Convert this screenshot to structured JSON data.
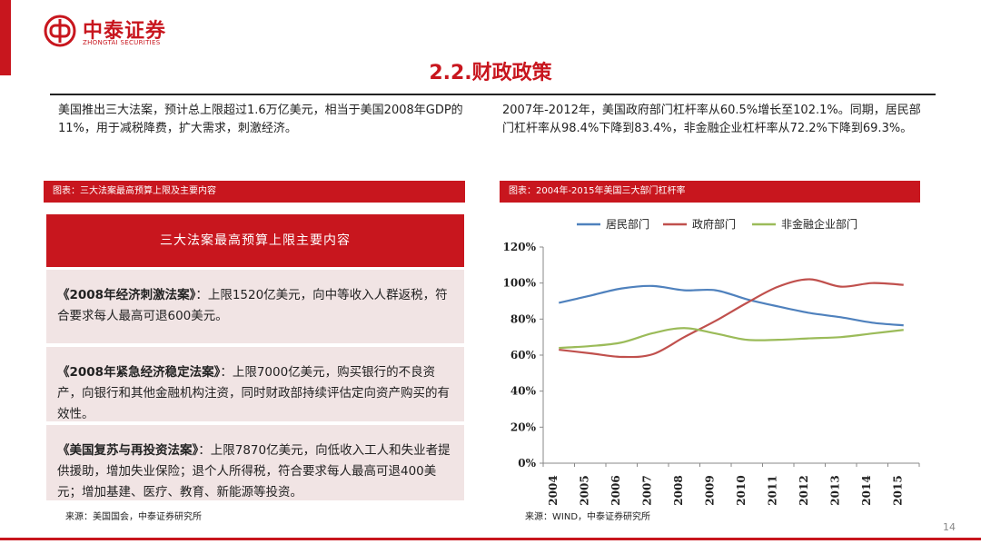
{
  "brand": {
    "name_cn": "中泰证券",
    "name_en": "ZHONGTAI SECURITIES",
    "color": "#c8161e"
  },
  "page": {
    "title": "2.2.财政政策",
    "number": "14"
  },
  "left": {
    "paragraph": "美国推出三大法案，预计总上限超过1.6万亿美元，相当于美国2008年GDP的11%，用于减税降费，扩大需求，刺激经济。",
    "figure_caption": "图表：三大法案最高预算上限及主要内容",
    "table_header": "三大法案最高预算上限主要内容",
    "rows": [
      {
        "title": "《2008年经济刺激法案》",
        "body": "：上限1520亿美元，向中等收入人群返税，符合要求每人最高可退600美元。"
      },
      {
        "title": "《2008年紧急经济稳定法案》",
        "body": "：上限7000亿美元，购买银行的不良资产，向银行和其他金融机构注资，同时财政部持续评估定向资产购买的有效性。"
      },
      {
        "title": "《美国复苏与再投资法案》",
        "body": "：上限7870亿美元，向低收入工人和失业者提供援助，增加失业保险；退个人所得税，符合要求每人最高可退400美元；增加基建、医疗、教育、新能源等投资。"
      }
    ],
    "source": "来源：美国国会，中泰证券研究所"
  },
  "right": {
    "paragraph": "2007年-2012年，美国政府部门杠杆率从60.5%增长至102.1%。同期，居民部门杠杆率从98.4%下降到83.4%，非金融企业杠杆率从72.2%下降到69.3%。",
    "figure_caption": "图表：2004年-2015年美国三大部门杠杆率",
    "source": "来源：WIND，中泰证券研究所"
  },
  "chart_data": {
    "type": "line",
    "title": "2004年-2015年美国三大部门杠杆率",
    "legend_position": "top",
    "x": [
      "2004",
      "2005",
      "2006",
      "2007",
      "2008",
      "2009",
      "2010",
      "2011",
      "2012",
      "2013",
      "2014",
      "2015"
    ],
    "ylim": [
      0,
      120
    ],
    "yticks": [
      0,
      20,
      40,
      60,
      80,
      100,
      120
    ],
    "ytick_labels": [
      "0%",
      "20%",
      "40%",
      "60%",
      "80%",
      "100%",
      "120%"
    ],
    "series": [
      {
        "name": "居民部门",
        "color": "#4f81bd",
        "values": [
          89,
          93,
          97,
          98.4,
          96,
          96,
          91,
          87,
          83.4,
          81,
          78,
          76.5
        ]
      },
      {
        "name": "政府部门",
        "color": "#c0504d",
        "values": [
          63,
          61,
          59,
          60.5,
          70,
          79,
          89,
          98,
          102.1,
          98,
          100,
          99
        ]
      },
      {
        "name": "非金融企业部门",
        "color": "#9bbb59",
        "values": [
          64,
          65,
          67,
          72.2,
          75,
          72,
          68.5,
          68.5,
          69.3,
          70,
          72,
          74
        ]
      }
    ]
  }
}
